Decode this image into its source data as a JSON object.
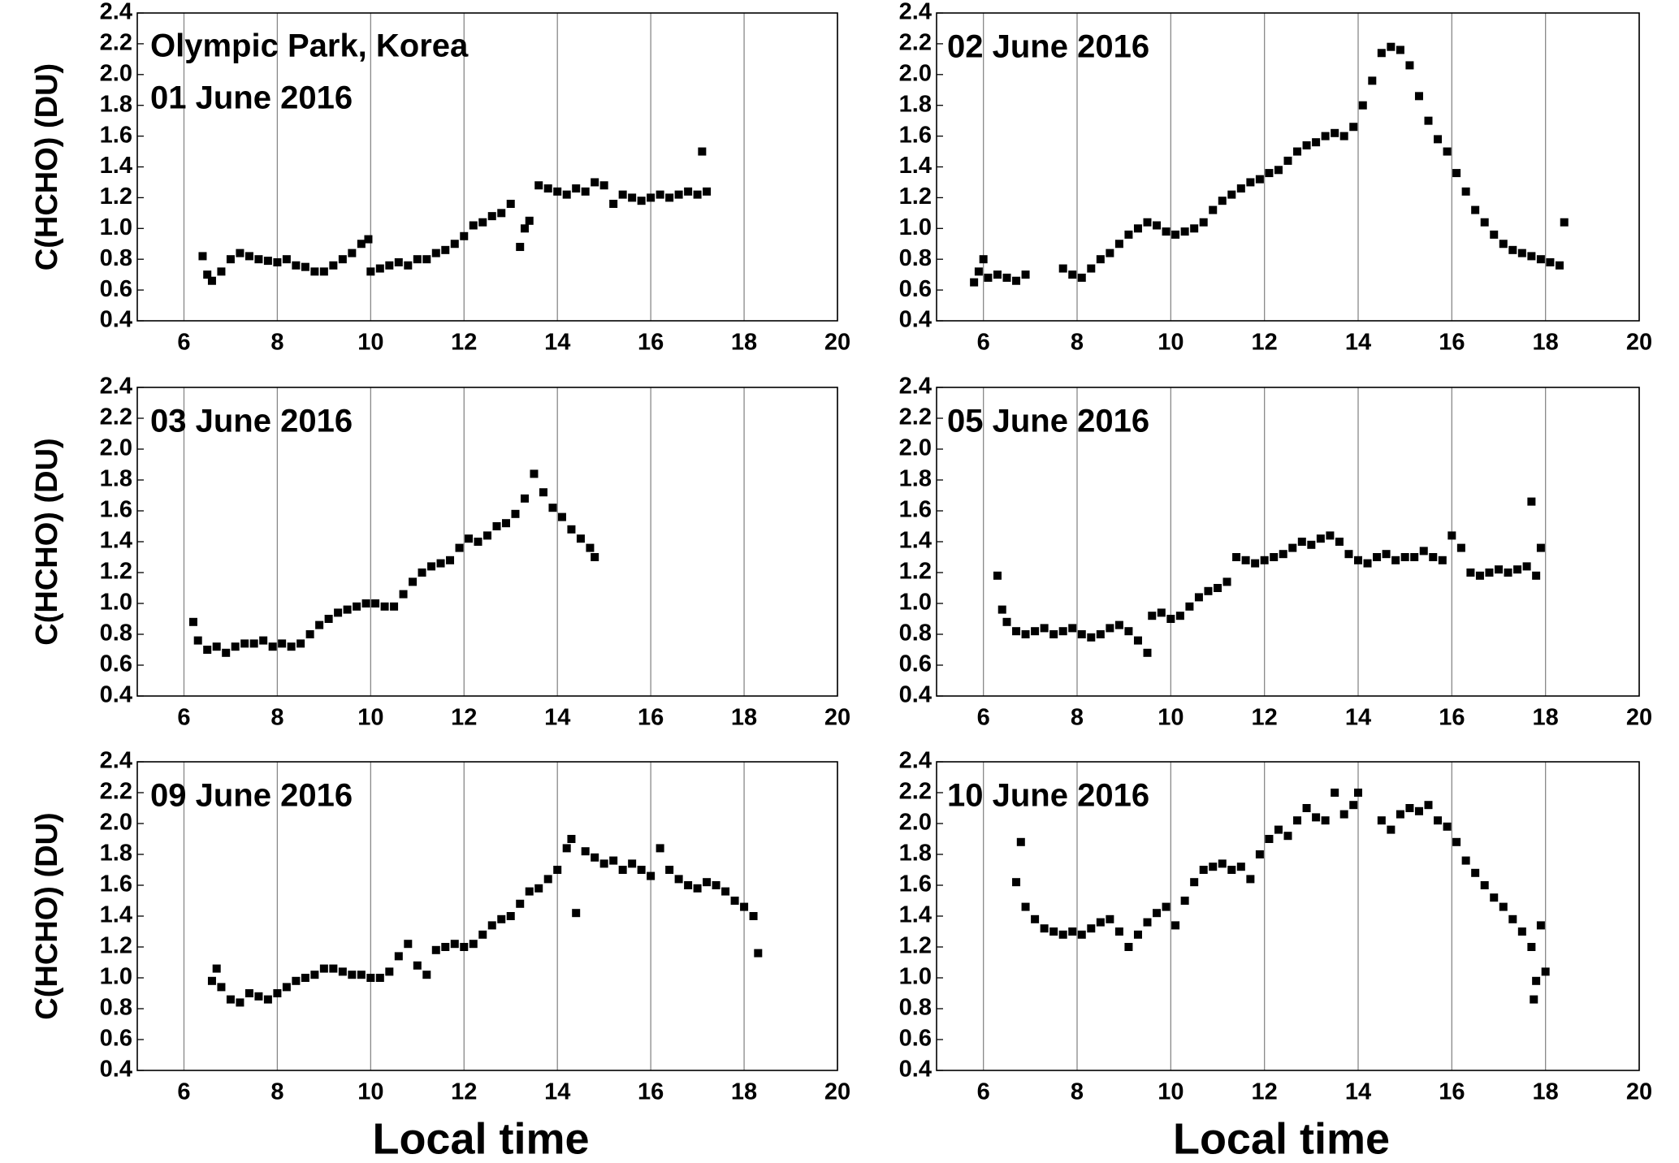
{
  "chart_data": [
    {
      "type": "scatter",
      "annotation": "Olympic Park, Korea",
      "title": "01 June 2016",
      "ylabel": "C(HCHO) (DU)",
      "color": "#000000",
      "grid": "x",
      "xlim": [
        5,
        20
      ],
      "xticks": [
        6,
        8,
        10,
        12,
        14,
        16,
        18,
        20
      ],
      "ylim": [
        0.4,
        2.4
      ],
      "yticks": [
        0.4,
        0.6,
        0.8,
        {
          "value": 1,
          "label": "1.0"
        },
        1.2,
        1.4,
        1.6,
        1.8,
        {
          "value": 2,
          "label": "2.0"
        },
        2.2,
        2.4
      ],
      "x": [
        6.4,
        6.5,
        6.6,
        6.8,
        7.0,
        7.2,
        7.4,
        7.6,
        7.8,
        8.0,
        8.2,
        8.4,
        8.6,
        8.8,
        9.0,
        9.2,
        9.4,
        9.6,
        9.8,
        9.95,
        10.0,
        10.2,
        10.4,
        10.6,
        10.8,
        11.0,
        11.2,
        11.4,
        11.6,
        11.8,
        12.0,
        12.2,
        12.4,
        12.6,
        12.8,
        13.0,
        13.2,
        13.3,
        13.4,
        13.6,
        13.8,
        14.0,
        14.2,
        14.4,
        14.6,
        14.8,
        15.0,
        15.2,
        15.4,
        15.6,
        15.8,
        16.0,
        16.2,
        16.4,
        16.6,
        16.8,
        17.0,
        17.1,
        17.2
      ],
      "values": [
        0.82,
        0.7,
        0.66,
        0.72,
        0.8,
        0.84,
        0.82,
        0.8,
        0.79,
        0.78,
        0.8,
        0.76,
        0.75,
        0.72,
        0.72,
        0.76,
        0.8,
        0.84,
        0.9,
        0.93,
        0.72,
        0.74,
        0.76,
        0.78,
        0.76,
        0.8,
        0.8,
        0.84,
        0.86,
        0.9,
        0.95,
        1.02,
        1.04,
        1.08,
        1.1,
        1.16,
        0.88,
        1.0,
        1.05,
        1.28,
        1.26,
        1.24,
        1.22,
        1.26,
        1.24,
        1.3,
        1.28,
        1.16,
        1.22,
        1.2,
        1.18,
        1.2,
        1.22,
        1.2,
        1.22,
        1.24,
        1.22,
        1.5,
        1.24
      ]
    },
    {
      "type": "scatter",
      "title": "02 June 2016",
      "color": "#000000",
      "grid": "x",
      "xlim": [
        5,
        20
      ],
      "xticks": [
        6,
        8,
        10,
        12,
        14,
        16,
        18,
        20
      ],
      "ylim": [
        0.4,
        2.4
      ],
      "yticks": [
        0.4,
        0.6,
        0.8,
        {
          "value": 1,
          "label": "1.0"
        },
        1.2,
        1.4,
        1.6,
        1.8,
        {
          "value": 2,
          "label": "2.0"
        },
        2.2,
        2.4
      ],
      "x": [
        5.8,
        5.9,
        6.0,
        6.1,
        6.3,
        6.5,
        6.7,
        6.9,
        7.7,
        7.9,
        8.1,
        8.3,
        8.5,
        8.7,
        8.9,
        9.1,
        9.3,
        9.5,
        9.7,
        9.9,
        10.1,
        10.3,
        10.5,
        10.7,
        10.9,
        11.1,
        11.3,
        11.5,
        11.7,
        11.9,
        12.1,
        12.3,
        12.5,
        12.7,
        12.9,
        13.1,
        13.3,
        13.5,
        13.7,
        13.9,
        14.1,
        14.3,
        14.5,
        14.7,
        14.9,
        15.1,
        15.3,
        15.5,
        15.7,
        15.9,
        16.1,
        16.3,
        16.5,
        16.7,
        16.9,
        17.1,
        17.3,
        17.5,
        17.7,
        17.9,
        18.1,
        18.3,
        18.4
      ],
      "values": [
        0.65,
        0.72,
        0.8,
        0.68,
        0.7,
        0.68,
        0.66,
        0.7,
        0.74,
        0.7,
        0.68,
        0.74,
        0.8,
        0.84,
        0.9,
        0.96,
        1.0,
        1.04,
        1.02,
        0.98,
        0.96,
        0.98,
        1.0,
        1.04,
        1.12,
        1.18,
        1.22,
        1.26,
        1.3,
        1.32,
        1.36,
        1.38,
        1.44,
        1.5,
        1.54,
        1.56,
        1.6,
        1.62,
        1.6,
        1.66,
        1.8,
        1.96,
        2.14,
        2.18,
        2.16,
        2.06,
        1.86,
        1.7,
        1.58,
        1.5,
        1.36,
        1.24,
        1.12,
        1.04,
        0.96,
        0.9,
        0.86,
        0.84,
        0.82,
        0.8,
        0.78,
        0.76,
        1.04
      ]
    },
    {
      "type": "scatter",
      "title": "03 June 2016",
      "ylabel": "C(HCHO) (DU)",
      "color": "#000000",
      "grid": "x",
      "xlim": [
        5,
        20
      ],
      "xticks": [
        6,
        8,
        10,
        12,
        14,
        16,
        18,
        20
      ],
      "ylim": [
        0.4,
        2.4
      ],
      "yticks": [
        0.4,
        0.6,
        0.8,
        {
          "value": 1,
          "label": "1.0"
        },
        1.2,
        1.4,
        1.6,
        1.8,
        {
          "value": 2,
          "label": "2.0"
        },
        2.2,
        2.4
      ],
      "x": [
        6.2,
        6.3,
        6.5,
        6.7,
        6.9,
        7.1,
        7.3,
        7.5,
        7.7,
        7.9,
        8.1,
        8.3,
        8.5,
        8.7,
        8.9,
        9.1,
        9.3,
        9.5,
        9.7,
        9.9,
        10.1,
        10.3,
        10.5,
        10.7,
        10.9,
        11.1,
        11.3,
        11.5,
        11.7,
        11.9,
        12.1,
        12.3,
        12.5,
        12.7,
        12.9,
        13.1,
        13.3,
        13.5,
        13.7,
        13.9,
        14.1,
        14.3,
        14.5,
        14.7,
        14.8
      ],
      "values": [
        0.88,
        0.76,
        0.7,
        0.72,
        0.68,
        0.72,
        0.74,
        0.74,
        0.76,
        0.72,
        0.74,
        0.72,
        0.74,
        0.8,
        0.86,
        0.9,
        0.94,
        0.96,
        0.98,
        1.0,
        1.0,
        0.98,
        0.98,
        1.06,
        1.14,
        1.2,
        1.24,
        1.26,
        1.28,
        1.36,
        1.42,
        1.4,
        1.44,
        1.5,
        1.52,
        1.58,
        1.68,
        1.84,
        1.72,
        1.62,
        1.56,
        1.48,
        1.42,
        1.36,
        1.3
      ]
    },
    {
      "type": "scatter",
      "title": "05 June 2016",
      "color": "#000000",
      "grid": "x",
      "xlim": [
        5,
        20
      ],
      "xticks": [
        6,
        8,
        10,
        12,
        14,
        16,
        18,
        20
      ],
      "ylim": [
        0.4,
        2.4
      ],
      "yticks": [
        0.4,
        0.6,
        0.8,
        {
          "value": 1,
          "label": "1.0"
        },
        1.2,
        1.4,
        1.6,
        1.8,
        {
          "value": 2,
          "label": "2.0"
        },
        2.2,
        2.4
      ],
      "x": [
        6.3,
        6.4,
        6.5,
        6.7,
        6.9,
        7.1,
        7.3,
        7.5,
        7.7,
        7.9,
        8.1,
        8.3,
        8.5,
        8.7,
        8.9,
        9.1,
        9.3,
        9.5,
        9.6,
        9.8,
        10.0,
        10.2,
        10.4,
        10.6,
        10.8,
        11.0,
        11.2,
        11.4,
        11.6,
        11.8,
        12.0,
        12.2,
        12.4,
        12.6,
        12.8,
        13.0,
        13.2,
        13.4,
        13.6,
        13.8,
        14.0,
        14.2,
        14.4,
        14.6,
        14.8,
        15.0,
        15.2,
        15.4,
        15.6,
        15.8,
        16.0,
        16.2,
        16.4,
        16.6,
        16.8,
        17.0,
        17.2,
        17.4,
        17.6,
        17.7,
        17.8,
        17.9
      ],
      "values": [
        1.18,
        0.96,
        0.88,
        0.82,
        0.8,
        0.82,
        0.84,
        0.8,
        0.82,
        0.84,
        0.8,
        0.78,
        0.8,
        0.84,
        0.86,
        0.82,
        0.76,
        0.68,
        0.92,
        0.94,
        0.9,
        0.92,
        0.98,
        1.04,
        1.08,
        1.1,
        1.14,
        1.3,
        1.28,
        1.26,
        1.28,
        1.3,
        1.32,
        1.36,
        1.4,
        1.38,
        1.42,
        1.44,
        1.4,
        1.32,
        1.28,
        1.26,
        1.3,
        1.32,
        1.28,
        1.3,
        1.3,
        1.34,
        1.3,
        1.28,
        1.44,
        1.36,
        1.2,
        1.18,
        1.2,
        1.22,
        1.2,
        1.22,
        1.24,
        1.66,
        1.18,
        1.36
      ]
    },
    {
      "type": "scatter",
      "title": "09 June 2016",
      "ylabel": "C(HCHO) (DU)",
      "xlabel": "Local time",
      "color": "#000000",
      "grid": "x",
      "xlim": [
        5,
        20
      ],
      "xticks": [
        6,
        8,
        10,
        12,
        14,
        16,
        18,
        20
      ],
      "ylim": [
        0.4,
        2.4
      ],
      "yticks": [
        0.4,
        0.6,
        0.8,
        {
          "value": 1,
          "label": "1.0"
        },
        1.2,
        1.4,
        1.6,
        1.8,
        {
          "value": 2,
          "label": "2.0"
        },
        2.2,
        2.4
      ],
      "x": [
        6.6,
        6.7,
        6.8,
        7.0,
        7.2,
        7.4,
        7.6,
        7.8,
        8.0,
        8.2,
        8.4,
        8.6,
        8.8,
        9.0,
        9.2,
        9.4,
        9.6,
        9.8,
        10.0,
        10.2,
        10.4,
        10.6,
        10.8,
        11.0,
        11.2,
        11.4,
        11.6,
        11.8,
        12.0,
        12.2,
        12.4,
        12.6,
        12.8,
        13.0,
        13.2,
        13.4,
        13.6,
        13.8,
        14.0,
        14.2,
        14.3,
        14.4,
        14.6,
        14.8,
        15.0,
        15.2,
        15.4,
        15.6,
        15.8,
        16.0,
        16.2,
        16.4,
        16.6,
        16.8,
        17.0,
        17.2,
        17.4,
        17.6,
        17.8,
        18.0,
        18.2,
        18.3
      ],
      "values": [
        0.98,
        1.06,
        0.94,
        0.86,
        0.84,
        0.9,
        0.88,
        0.86,
        0.9,
        0.94,
        0.98,
        1.0,
        1.02,
        1.06,
        1.06,
        1.04,
        1.02,
        1.02,
        1.0,
        1.0,
        1.04,
        1.14,
        1.22,
        1.08,
        1.02,
        1.18,
        1.2,
        1.22,
        1.2,
        1.22,
        1.28,
        1.34,
        1.38,
        1.4,
        1.48,
        1.56,
        1.58,
        1.64,
        1.7,
        1.84,
        1.9,
        1.42,
        1.82,
        1.78,
        1.74,
        1.76,
        1.7,
        1.74,
        1.7,
        1.66,
        1.84,
        1.7,
        1.64,
        1.6,
        1.58,
        1.62,
        1.6,
        1.56,
        1.5,
        1.46,
        1.4,
        1.16
      ]
    },
    {
      "type": "scatter",
      "title": "10 June 2016",
      "xlabel": "Local time",
      "color": "#000000",
      "grid": "x",
      "xlim": [
        5,
        20
      ],
      "xticks": [
        6,
        8,
        10,
        12,
        14,
        16,
        18,
        20
      ],
      "ylim": [
        0.4,
        2.4
      ],
      "yticks": [
        0.4,
        0.6,
        0.8,
        {
          "value": 1,
          "label": "1.0"
        },
        1.2,
        1.4,
        1.6,
        1.8,
        {
          "value": 2,
          "label": "2.0"
        },
        2.2,
        2.4
      ],
      "x": [
        6.7,
        6.8,
        6.9,
        7.1,
        7.3,
        7.5,
        7.7,
        7.9,
        8.1,
        8.3,
        8.5,
        8.7,
        8.9,
        9.1,
        9.3,
        9.5,
        9.7,
        9.9,
        10.1,
        10.3,
        10.5,
        10.7,
        10.9,
        11.1,
        11.3,
        11.5,
        11.7,
        11.9,
        12.1,
        12.3,
        12.5,
        12.7,
        12.9,
        13.1,
        13.3,
        13.5,
        13.7,
        13.9,
        14.0,
        14.5,
        14.7,
        14.9,
        15.1,
        15.3,
        15.5,
        15.7,
        15.9,
        16.1,
        16.3,
        16.5,
        16.7,
        16.9,
        17.1,
        17.3,
        17.5,
        17.7,
        17.75,
        17.8,
        17.9,
        18.0
      ],
      "values": [
        1.62,
        1.88,
        1.46,
        1.38,
        1.32,
        1.3,
        1.28,
        1.3,
        1.28,
        1.32,
        1.36,
        1.38,
        1.3,
        1.2,
        1.28,
        1.36,
        1.42,
        1.46,
        1.34,
        1.5,
        1.62,
        1.7,
        1.72,
        1.74,
        1.7,
        1.72,
        1.64,
        1.8,
        1.9,
        1.96,
        1.92,
        2.02,
        2.1,
        2.04,
        2.02,
        2.2,
        2.06,
        2.12,
        2.2,
        2.02,
        1.96,
        2.06,
        2.1,
        2.08,
        2.12,
        2.02,
        1.98,
        1.88,
        1.76,
        1.68,
        1.6,
        1.52,
        1.46,
        1.38,
        1.3,
        1.2,
        0.86,
        0.98,
        1.34,
        1.04
      ]
    }
  ]
}
